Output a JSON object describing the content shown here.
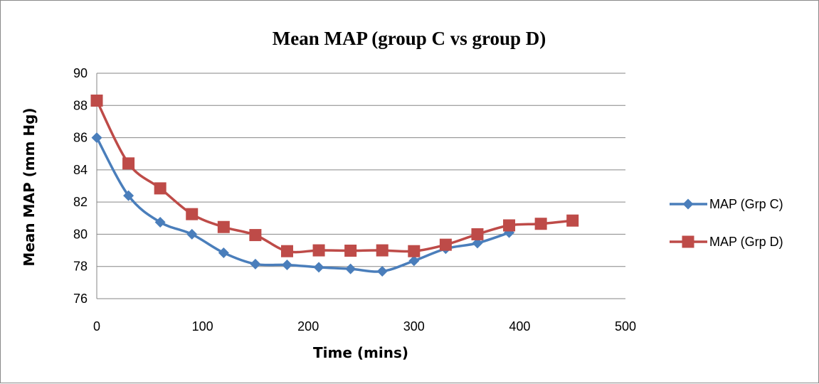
{
  "chart_data": {
    "type": "line",
    "title": "Mean MAP (group C vs group D)",
    "xlabel": "Time (mins)",
    "ylabel": "Mean MAP (mm Hg)",
    "xlim": [
      0,
      500
    ],
    "ylim": [
      76,
      90
    ],
    "xticks": [
      0,
      100,
      200,
      300,
      400,
      500
    ],
    "yticks": [
      76,
      78,
      80,
      82,
      84,
      86,
      88,
      90
    ],
    "grid": "horizontal",
    "legend_position": "right",
    "series": [
      {
        "name": "MAP (Grp C)",
        "color": "#4a7ebb",
        "marker": "diamond",
        "x": [
          0,
          30,
          60,
          90,
          120,
          150,
          180,
          210,
          240,
          270,
          300,
          330,
          360,
          390
        ],
        "y": [
          86.0,
          82.4,
          80.75,
          80.0,
          78.85,
          78.15,
          78.1,
          77.95,
          77.85,
          77.7,
          78.35,
          79.1,
          79.45,
          80.1
        ]
      },
      {
        "name": "MAP (Grp D)",
        "color": "#be4b48",
        "marker": "square",
        "x": [
          0,
          30,
          60,
          90,
          120,
          150,
          180,
          210,
          240,
          270,
          300,
          330,
          360,
          390,
          420,
          450
        ],
        "y": [
          88.3,
          84.4,
          82.85,
          81.25,
          80.45,
          79.95,
          78.95,
          79.0,
          78.98,
          79.0,
          78.95,
          79.35,
          80.0,
          80.55,
          80.65,
          80.85
        ]
      }
    ]
  }
}
